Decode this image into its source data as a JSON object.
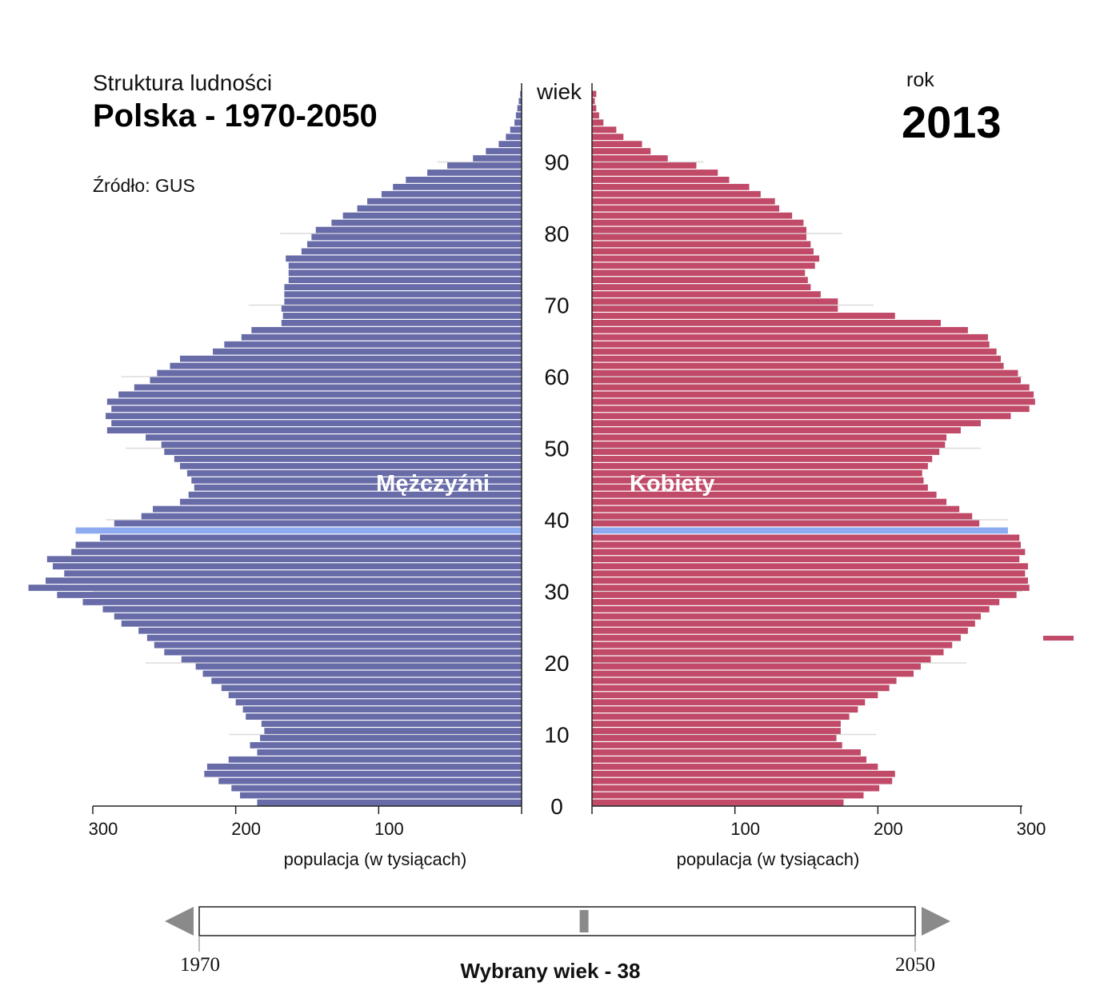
{
  "header": {
    "subtitle": "Struktura ludności",
    "title": "Polska - 1970-2050",
    "source": "Źródło: GUS",
    "year_label": "rok",
    "year_value": "2013"
  },
  "slider": {
    "start_label": "1970",
    "end_label": "2050",
    "start_year": 1970,
    "end_year": 2050,
    "current_year": 2013,
    "selected_age_text": "Wybrany wiek - 38"
  },
  "chart_data": {
    "type": "bar",
    "orientation": "horizontal-pyramid",
    "age_axis_label": "wiek",
    "age_ticks": [
      "0",
      "10",
      "20",
      "30",
      "40",
      "50",
      "60",
      "70",
      "80",
      "90"
    ],
    "xlabel_left": "populacja (w tysiącach)",
    "xlabel_right": "populacja (w tysiącach)",
    "left_ticks": [
      "300",
      "200",
      "100"
    ],
    "right_ticks": [
      "100",
      "200",
      "300"
    ],
    "xlim": [
      0,
      300
    ],
    "ylim": [
      0,
      100
    ],
    "grid": true,
    "selected_age": 38,
    "highlight_color": "#8eaaf0",
    "series": [
      {
        "name": "Mężczyźni",
        "side": "left",
        "color": "#676ba8",
        "ages": [
          0,
          1,
          2,
          3,
          4,
          5,
          6,
          7,
          8,
          9,
          10,
          11,
          12,
          13,
          14,
          15,
          16,
          17,
          18,
          19,
          20,
          21,
          22,
          23,
          24,
          25,
          26,
          27,
          28,
          29,
          30,
          31,
          32,
          33,
          34,
          35,
          36,
          37,
          38,
          39,
          40,
          41,
          42,
          43,
          44,
          45,
          46,
          47,
          48,
          49,
          50,
          51,
          52,
          53,
          54,
          55,
          56,
          57,
          58,
          59,
          60,
          61,
          62,
          63,
          64,
          65,
          66,
          67,
          68,
          69,
          70,
          71,
          72,
          73,
          74,
          75,
          76,
          77,
          78,
          79,
          80,
          81,
          82,
          83,
          84,
          85,
          86,
          87,
          88,
          89,
          90,
          91,
          92,
          93,
          94,
          95,
          96,
          97,
          98,
          99
        ],
        "values": [
          185,
          197,
          203,
          212,
          222,
          220,
          205,
          185,
          190,
          183,
          180,
          182,
          193,
          195,
          200,
          205,
          210,
          217,
          223,
          228,
          238,
          250,
          257,
          262,
          268,
          280,
          285,
          293,
          307,
          325,
          345,
          333,
          320,
          328,
          332,
          315,
          312,
          295,
          312,
          285,
          266,
          258,
          239,
          233,
          229,
          231,
          234,
          239,
          243,
          250,
          252,
          263,
          290,
          287,
          291,
          287,
          290,
          282,
          271,
          260,
          255,
          246,
          239,
          216,
          208,
          196,
          189,
          168,
          167,
          168,
          166,
          166,
          166,
          163,
          163,
          163,
          165,
          154,
          150,
          147,
          144,
          133,
          125,
          115,
          108,
          98,
          90,
          81,
          66,
          52,
          34,
          25,
          16,
          11,
          8,
          5,
          4,
          3,
          2,
          1
        ]
      },
      {
        "name": "Kobiety",
        "side": "right",
        "color": "#c14a68",
        "ages": [
          0,
          1,
          2,
          3,
          4,
          5,
          6,
          7,
          8,
          9,
          10,
          11,
          12,
          13,
          14,
          15,
          16,
          17,
          18,
          19,
          20,
          21,
          22,
          23,
          24,
          25,
          26,
          27,
          28,
          29,
          30,
          31,
          32,
          33,
          34,
          35,
          36,
          37,
          38,
          39,
          40,
          41,
          42,
          43,
          44,
          45,
          46,
          47,
          48,
          49,
          50,
          51,
          52,
          53,
          54,
          55,
          56,
          57,
          58,
          59,
          60,
          61,
          62,
          63,
          64,
          65,
          66,
          67,
          68,
          69,
          70,
          71,
          72,
          73,
          74,
          75,
          76,
          77,
          78,
          79,
          80,
          81,
          82,
          83,
          84,
          85,
          86,
          87,
          88,
          89,
          90,
          91,
          92,
          93,
          94,
          95,
          96,
          97,
          98,
          99
        ],
        "values": [
          176,
          190,
          201,
          210,
          212,
          200,
          192,
          188,
          175,
          171,
          174,
          174,
          180,
          186,
          191,
          200,
          208,
          213,
          225,
          230,
          237,
          246,
          252,
          258,
          263,
          268,
          272,
          278,
          285,
          297,
          306,
          305,
          303,
          305,
          299,
          303,
          300,
          299,
          291,
          271,
          266,
          257,
          248,
          241,
          235,
          232,
          231,
          235,
          238,
          243,
          247,
          248,
          258,
          272,
          293,
          306,
          310,
          309,
          306,
          300,
          298,
          288,
          286,
          283,
          278,
          277,
          263,
          244,
          212,
          172,
          172,
          160,
          153,
          151,
          149,
          156,
          159,
          155,
          153,
          150,
          150,
          148,
          140,
          131,
          128,
          118,
          110,
          96,
          88,
          73,
          53,
          41,
          35,
          22,
          17,
          8,
          5,
          3,
          2,
          3
        ]
      }
    ]
  }
}
